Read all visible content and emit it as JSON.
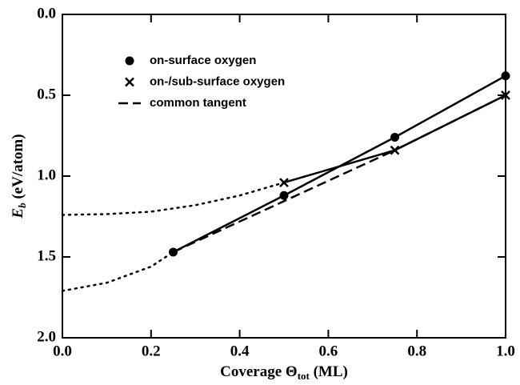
{
  "chart_data": {
    "type": "line",
    "xlabel": [
      "Coverage ",
      "Θ",
      "tot",
      " (ML)"
    ],
    "ylabel": [
      "E",
      "b",
      " (eV/atom)"
    ],
    "xlim": [
      0,
      1
    ],
    "ylim": [
      0,
      2
    ],
    "y_reversed": true,
    "xticks": [
      {
        "value": 0,
        "label": "0.0"
      },
      0.2,
      0.4,
      0.6,
      0.8,
      {
        "value": 1,
        "label": "1.0"
      }
    ],
    "yticks": [
      {
        "value": 0,
        "label": "0.0"
      },
      0.5,
      {
        "value": 1,
        "label": "1.0"
      },
      1.5,
      {
        "value": 2,
        "label": "2.0"
      }
    ],
    "legend": "upper left",
    "series": [
      {
        "name": "on-surface oxygen",
        "color": "#000000",
        "marker": "circle",
        "linestyle": "solid",
        "x": [
          0.25,
          0.5,
          0.75,
          1.0
        ],
        "values": [
          1.47,
          1.12,
          0.76,
          0.38
        ]
      },
      {
        "name": "on-/sub-surface oxygen",
        "color": "#000000",
        "marker": "x",
        "linestyle": "solid",
        "x": [
          0.5,
          0.75,
          1.0
        ],
        "values": [
          1.04,
          0.84,
          0.5
        ]
      },
      {
        "name": "common tangent",
        "color": "#000000",
        "marker": "none",
        "linestyle": "dashed",
        "x": [
          0.25,
          0.75,
          1.0
        ],
        "values": [
          1.47,
          0.84,
          0.5
        ]
      },
      {
        "color": "#000000",
        "marker": "none",
        "linestyle": "dotted",
        "x": [
          0,
          0.1,
          0.2,
          0.3,
          0.4,
          0.5
        ],
        "values": [
          1.24,
          1.235,
          1.22,
          1.18,
          1.12,
          1.04
        ]
      },
      {
        "color": "#000000",
        "marker": "none",
        "linestyle": "dotted",
        "x": [
          0,
          0.1,
          0.2,
          0.25
        ],
        "values": [
          1.71,
          1.66,
          1.56,
          1.47
        ]
      }
    ]
  }
}
